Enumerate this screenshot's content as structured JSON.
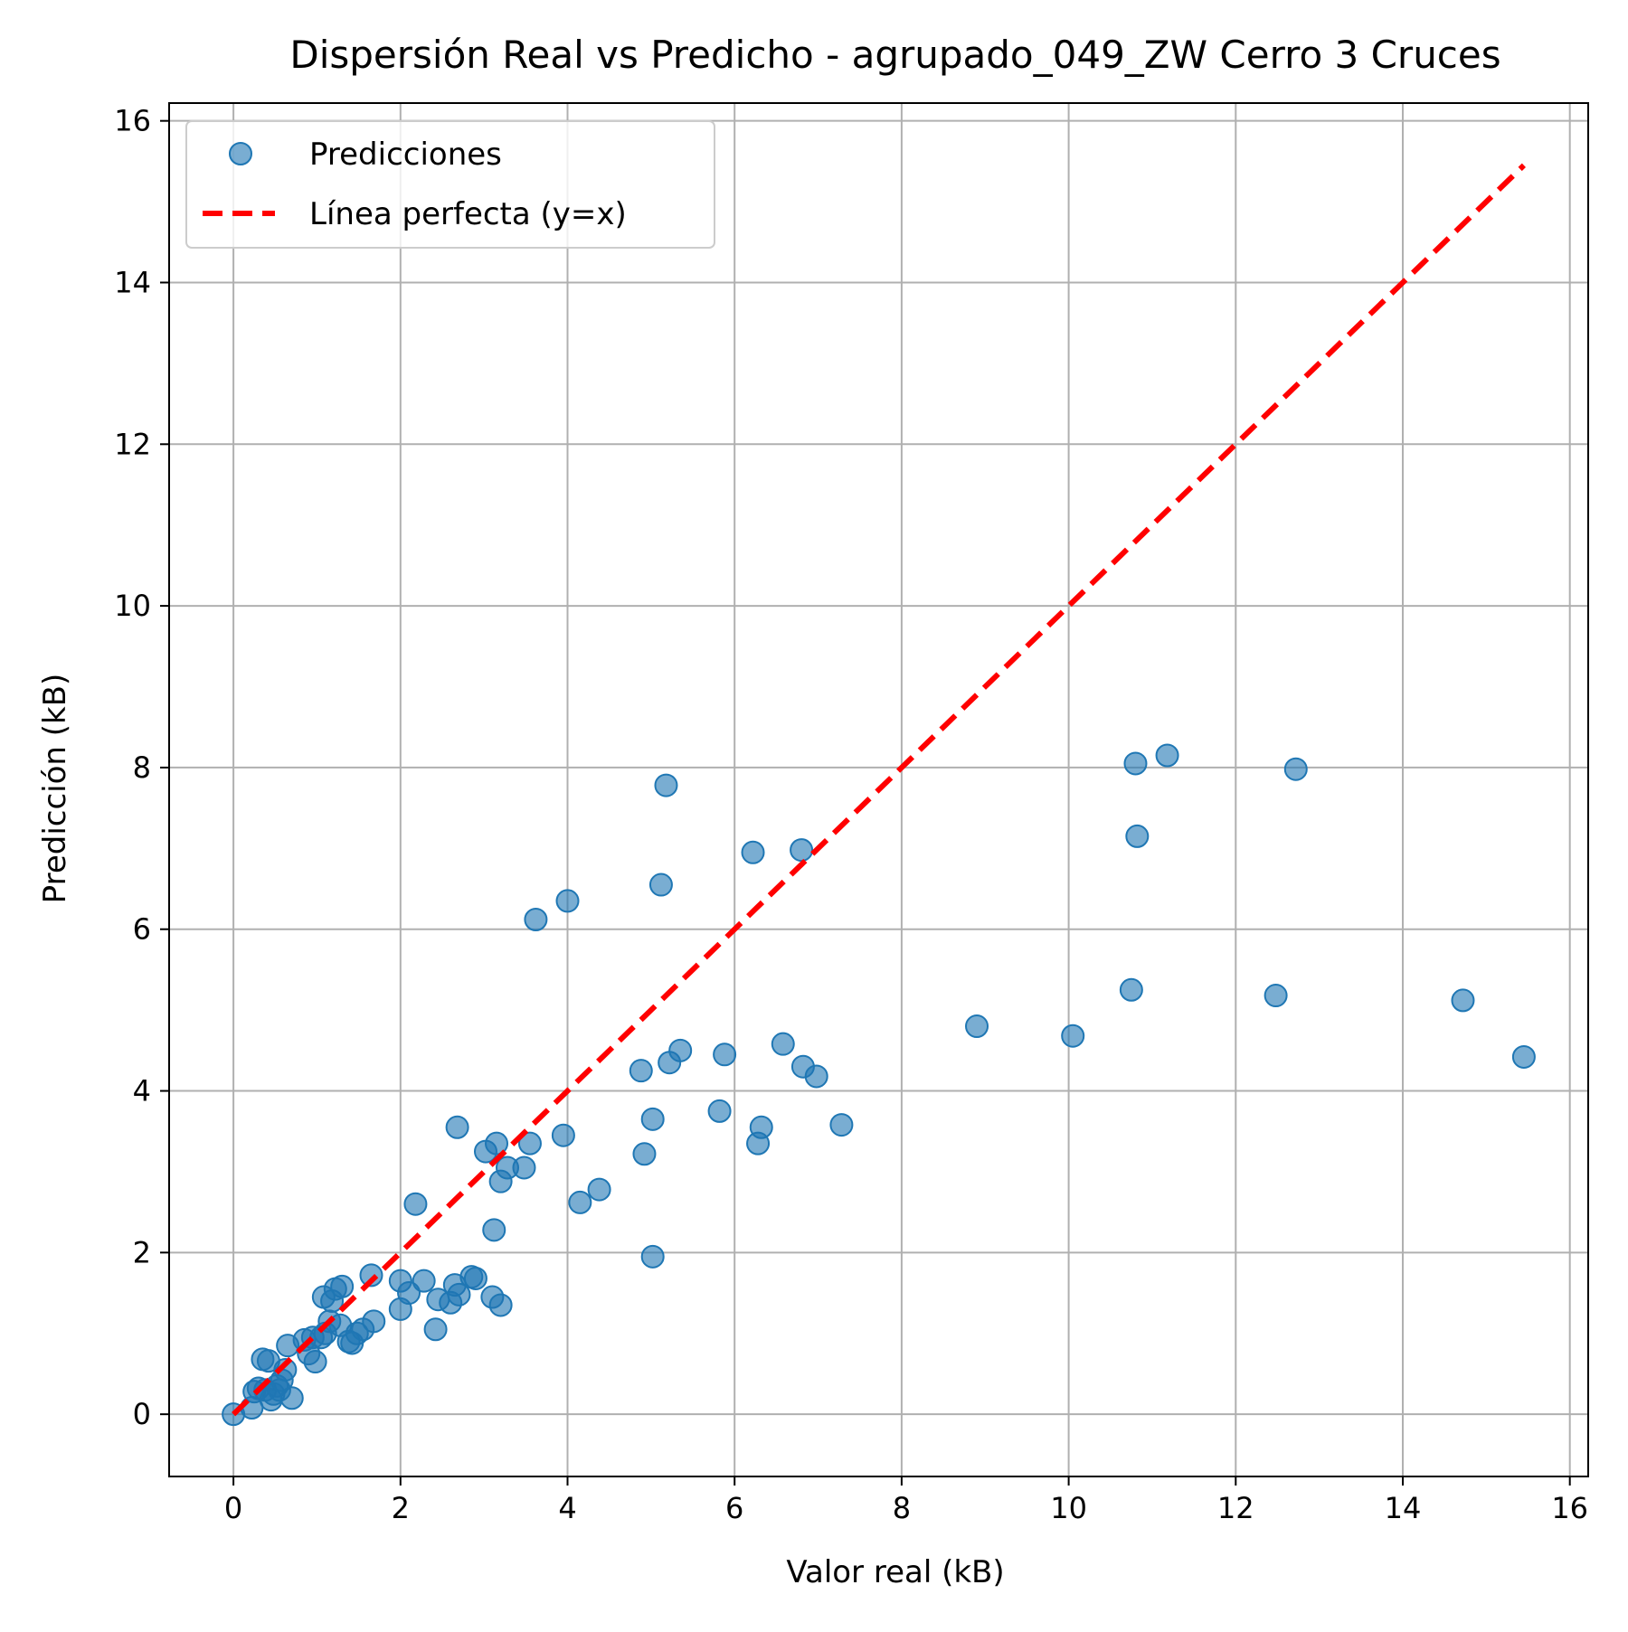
{
  "chart_data": {
    "type": "scatter",
    "title": "Dispersión Real vs Predicho - agrupado_049_ZW Cerro 3 Cruces",
    "xlabel": "Valor real (kB)",
    "ylabel": "Predicción (kB)",
    "xlim": [
      -0.77,
      16.22
    ],
    "ylim": [
      -0.77,
      16.22
    ],
    "xticks": [
      0,
      2,
      4,
      6,
      8,
      10,
      12,
      14,
      16
    ],
    "yticks": [
      0,
      2,
      4,
      6,
      8,
      10,
      12,
      14,
      16
    ],
    "grid": true,
    "legend_position": "top-left",
    "series": [
      {
        "name": "Predicciones",
        "kind": "scatter",
        "color": "#1f77b4",
        "points": [
          [
            0.0,
            0.0
          ],
          [
            0.22,
            0.08
          ],
          [
            0.25,
            0.28
          ],
          [
            0.3,
            0.32
          ],
          [
            0.35,
            0.68
          ],
          [
            0.42,
            0.66
          ],
          [
            0.38,
            0.3
          ],
          [
            0.45,
            0.18
          ],
          [
            0.48,
            0.25
          ],
          [
            0.52,
            0.35
          ],
          [
            0.55,
            0.3
          ],
          [
            0.58,
            0.42
          ],
          [
            0.62,
            0.55
          ],
          [
            0.65,
            0.85
          ],
          [
            0.7,
            0.2
          ],
          [
            0.85,
            0.92
          ],
          [
            0.9,
            0.75
          ],
          [
            0.95,
            0.95
          ],
          [
            0.98,
            0.65
          ],
          [
            1.05,
            0.95
          ],
          [
            1.08,
            1.45
          ],
          [
            1.1,
            1.0
          ],
          [
            1.15,
            1.15
          ],
          [
            1.18,
            1.4
          ],
          [
            1.22,
            1.55
          ],
          [
            1.28,
            1.1
          ],
          [
            1.3,
            1.58
          ],
          [
            1.38,
            0.9
          ],
          [
            1.42,
            0.88
          ],
          [
            1.48,
            1.0
          ],
          [
            1.55,
            1.05
          ],
          [
            1.65,
            1.72
          ],
          [
            1.68,
            1.15
          ],
          [
            2.0,
            1.3
          ],
          [
            2.0,
            1.65
          ],
          [
            2.1,
            1.5
          ],
          [
            2.18,
            2.6
          ],
          [
            2.28,
            1.65
          ],
          [
            2.42,
            1.05
          ],
          [
            2.45,
            1.42
          ],
          [
            2.6,
            1.38
          ],
          [
            2.65,
            1.6
          ],
          [
            2.7,
            1.48
          ],
          [
            2.68,
            3.55
          ],
          [
            2.85,
            1.7
          ],
          [
            2.9,
            1.68
          ],
          [
            3.02,
            3.25
          ],
          [
            3.1,
            1.45
          ],
          [
            3.12,
            2.28
          ],
          [
            3.15,
            3.35
          ],
          [
            3.2,
            2.88
          ],
          [
            3.2,
            1.35
          ],
          [
            3.28,
            3.05
          ],
          [
            3.48,
            3.05
          ],
          [
            3.55,
            3.35
          ],
          [
            3.62,
            6.12
          ],
          [
            3.95,
            3.45
          ],
          [
            4.0,
            6.35
          ],
          [
            4.15,
            2.62
          ],
          [
            4.38,
            2.78
          ],
          [
            4.88,
            4.25
          ],
          [
            4.92,
            3.22
          ],
          [
            5.02,
            3.65
          ],
          [
            5.02,
            1.95
          ],
          [
            5.12,
            6.55
          ],
          [
            5.18,
            7.78
          ],
          [
            5.22,
            4.35
          ],
          [
            5.35,
            4.5
          ],
          [
            5.82,
            3.75
          ],
          [
            5.88,
            4.45
          ],
          [
            6.22,
            6.95
          ],
          [
            6.28,
            3.35
          ],
          [
            6.32,
            3.55
          ],
          [
            6.58,
            4.58
          ],
          [
            6.8,
            6.98
          ],
          [
            6.82,
            4.3
          ],
          [
            6.98,
            4.18
          ],
          [
            7.28,
            3.58
          ],
          [
            8.9,
            4.8
          ],
          [
            10.05,
            4.68
          ],
          [
            10.75,
            5.25
          ],
          [
            10.8,
            8.05
          ],
          [
            10.82,
            7.15
          ],
          [
            11.18,
            8.15
          ],
          [
            12.48,
            5.18
          ],
          [
            12.72,
            7.98
          ],
          [
            14.72,
            5.12
          ],
          [
            15.45,
            4.42
          ]
        ]
      },
      {
        "name": "Línea perfecta (y=x)",
        "kind": "line",
        "color": "#ff0000",
        "dashed": true,
        "from": [
          0.0,
          0.0
        ],
        "to": [
          15.45,
          15.45
        ]
      }
    ]
  }
}
